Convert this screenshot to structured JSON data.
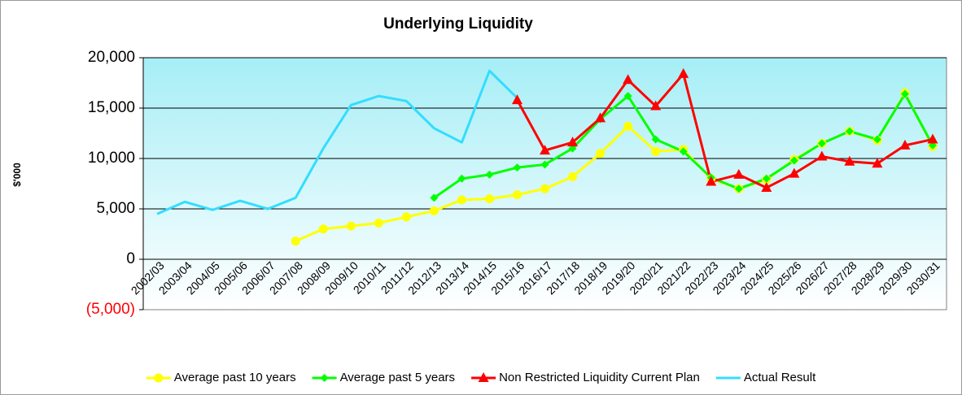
{
  "chart_data": {
    "type": "line",
    "title": "Underlying Liquidity",
    "y_label": "$'000",
    "categories": [
      "2002/03",
      "2003/04",
      "2004/05",
      "2005/06",
      "2006/07",
      "2007/08",
      "2008/09",
      "2009/10",
      "2010/11",
      "2011/12",
      "2012/13",
      "2013/14",
      "2014/15",
      "2015/16",
      "2016/17",
      "2017/18",
      "2018/19",
      "2019/20",
      "2020/21",
      "2021/22",
      "2022/23",
      "2023/24",
      "2024/25",
      "2025/26",
      "2026/27",
      "2027/28",
      "2028/29",
      "2029/30",
      "2030/31"
    ],
    "series": [
      {
        "name": "Average past 10 years",
        "color": "#ffff00",
        "marker": "circle",
        "values": [
          null,
          null,
          null,
          null,
          null,
          1800,
          3000,
          3300,
          3600,
          4200,
          4800,
          5900,
          6000,
          6400,
          7000,
          8200,
          10500,
          13200,
          10700,
          10900,
          8000,
          7000,
          7900,
          9900,
          11500,
          12700,
          11800,
          16500,
          11200
        ]
      },
      {
        "name": "Average past 5 years",
        "color": "#00ff00",
        "marker": "diamond",
        "values": [
          null,
          null,
          null,
          null,
          null,
          null,
          null,
          null,
          null,
          null,
          6100,
          8000,
          8400,
          9100,
          9400,
          11000,
          13900,
          16200,
          11900,
          10700,
          8100,
          7000,
          8000,
          9800,
          11500,
          12700,
          11900,
          16400,
          11300
        ]
      },
      {
        "name": "Non Restricted Liquidity Current Plan",
        "color": "#ff0000",
        "marker": "triangle",
        "values": [
          null,
          null,
          null,
          null,
          null,
          null,
          null,
          null,
          null,
          null,
          null,
          null,
          null,
          15800,
          10800,
          11600,
          14000,
          17800,
          15200,
          18400,
          7700,
          8400,
          7100,
          8500,
          10200,
          9700,
          9500,
          11300,
          11900
        ]
      },
      {
        "name": "Actual Result",
        "color": "#33ddff",
        "values": [
          4500,
          5700,
          4900,
          5800,
          5000,
          6100,
          11000,
          15300,
          16200,
          15700,
          13000,
          11600,
          18700,
          16000,
          null,
          null,
          null,
          null,
          null,
          null,
          null,
          null,
          null,
          null,
          null,
          null,
          null,
          null,
          null
        ]
      }
    ],
    "ylim": [
      -5000,
      20000
    ],
    "yticks": [
      {
        "value": -5000,
        "label": "(5,000)"
      },
      0,
      {
        "value": 5000,
        "label": "5,000"
      },
      {
        "value": 10000,
        "label": "10,000"
      },
      {
        "value": 15000,
        "label": "15,000"
      },
      {
        "value": 20000,
        "label": "20,000"
      }
    ],
    "negative_tick_color": "#ff0000",
    "grid": true,
    "legend": "bottom"
  }
}
